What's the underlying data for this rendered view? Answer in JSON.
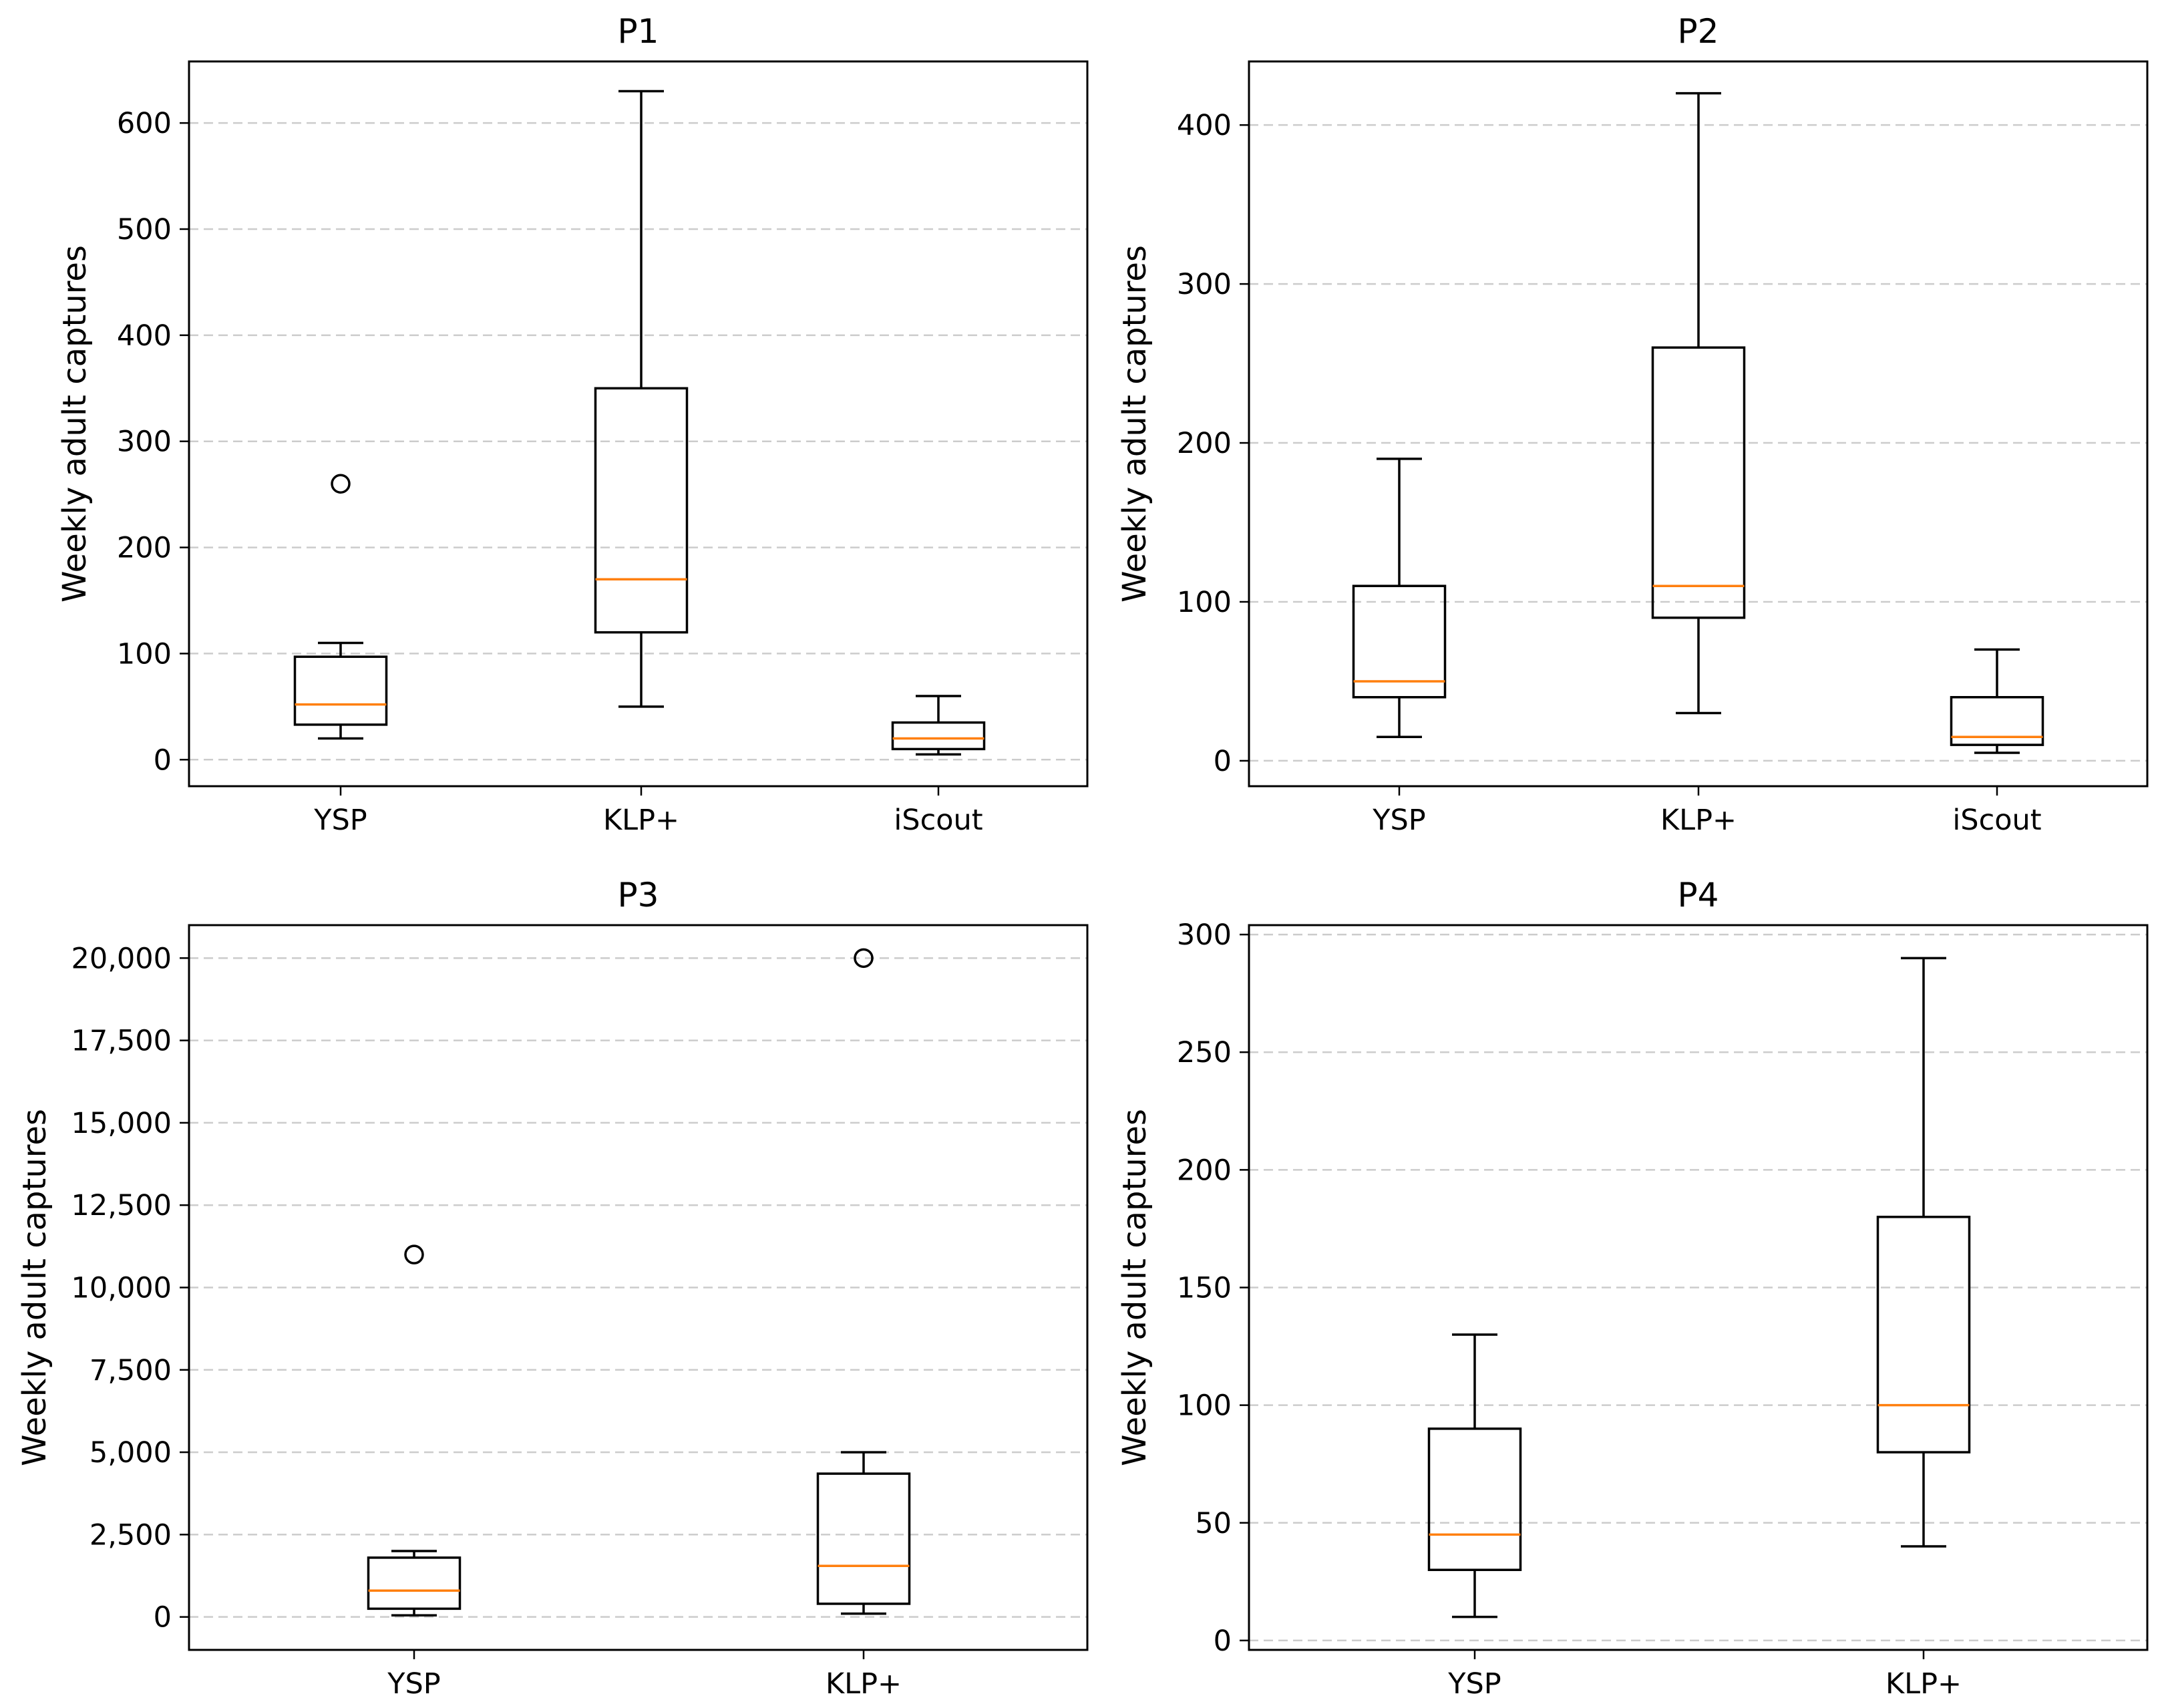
{
  "colors": {
    "box": "#000000",
    "median": "#ff7f0e",
    "grid": "#cccccc",
    "background": "#ffffff"
  },
  "chart_data": [
    {
      "type": "box",
      "title": "P1",
      "xlabel": "",
      "ylabel": "Weekly adult captures",
      "categories": [
        "YSP",
        "KLP+",
        "iScout"
      ],
      "ylim": [
        -25,
        658
      ],
      "yticks": [
        0,
        100,
        200,
        300,
        400,
        500,
        600
      ],
      "ytick_labels": [
        "0",
        "100",
        "200",
        "300",
        "400",
        "500",
        "600"
      ],
      "grid": "y-dashed",
      "boxes": [
        {
          "whisker_low": 20,
          "q1": 33,
          "median": 52,
          "q3": 97,
          "whisker_high": 110,
          "outliers": [
            260
          ]
        },
        {
          "whisker_low": 50,
          "q1": 120,
          "median": 170,
          "q3": 350,
          "whisker_high": 630,
          "outliers": []
        },
        {
          "whisker_low": 5,
          "q1": 10,
          "median": 20,
          "q3": 35,
          "whisker_high": 60,
          "outliers": []
        }
      ]
    },
    {
      "type": "box",
      "title": "P2",
      "xlabel": "",
      "ylabel": "Weekly adult captures",
      "categories": [
        "YSP",
        "KLP+",
        "iScout"
      ],
      "ylim": [
        -16,
        440
      ],
      "yticks": [
        0,
        100,
        200,
        300,
        400
      ],
      "ytick_labels": [
        "0",
        "100",
        "200",
        "300",
        "400"
      ],
      "grid": "y-dashed",
      "boxes": [
        {
          "whisker_low": 15,
          "q1": 40,
          "median": 50,
          "q3": 110,
          "whisker_high": 190,
          "outliers": []
        },
        {
          "whisker_low": 30,
          "q1": 90,
          "median": 110,
          "q3": 260,
          "whisker_high": 420,
          "outliers": []
        },
        {
          "whisker_low": 5,
          "q1": 10,
          "median": 15,
          "q3": 40,
          "whisker_high": 70,
          "outliers": []
        }
      ]
    },
    {
      "type": "box",
      "title": "P3",
      "xlabel": "",
      "ylabel": "Weekly adult captures",
      "categories": [
        "YSP",
        "KLP+"
      ],
      "ylim": [
        -1000,
        21000
      ],
      "yticks": [
        0,
        2500,
        5000,
        7500,
        10000,
        12500,
        15000,
        17500,
        20000
      ],
      "ytick_labels": [
        "0",
        "2,500",
        "5,000",
        "7,500",
        "10,000",
        "12,500",
        "15,000",
        "17,500",
        "20,000"
      ],
      "grid": "y-dashed",
      "boxes": [
        {
          "whisker_low": 50,
          "q1": 250,
          "median": 800,
          "q3": 1800,
          "whisker_high": 2000,
          "outliers": [
            11000
          ]
        },
        {
          "whisker_low": 100,
          "q1": 400,
          "median": 1550,
          "q3": 4350,
          "whisker_high": 5000,
          "outliers": [
            20000
          ]
        }
      ]
    },
    {
      "type": "box",
      "title": "P4",
      "xlabel": "",
      "ylabel": "Weekly adult captures",
      "categories": [
        "YSP",
        "KLP+"
      ],
      "ylim": [
        -4,
        304
      ],
      "yticks": [
        0,
        50,
        100,
        150,
        200,
        250,
        300
      ],
      "ytick_labels": [
        "0",
        "50",
        "100",
        "150",
        "200",
        "250",
        "300"
      ],
      "grid": "y-dashed",
      "boxes": [
        {
          "whisker_low": 10,
          "q1": 30,
          "median": 45,
          "q3": 90,
          "whisker_high": 130,
          "outliers": []
        },
        {
          "whisker_low": 40,
          "q1": 80,
          "median": 100,
          "q3": 180,
          "whisker_high": 290,
          "outliers": []
        }
      ]
    }
  ]
}
